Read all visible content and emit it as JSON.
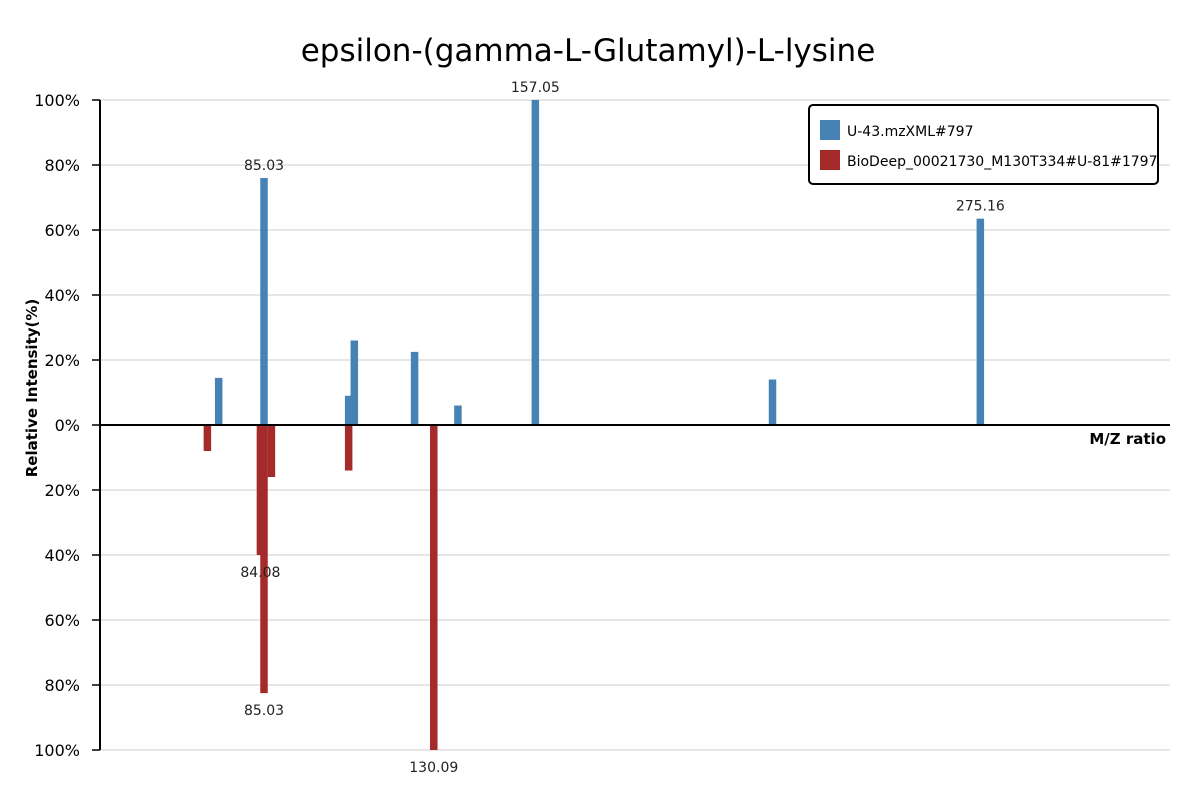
{
  "chart_data": {
    "type": "bar",
    "title": "epsilon-(gamma-L-Glutamyl)-L-lysine",
    "xlabel": "M/Z ratio",
    "ylabel": "Relative Intensity(%)",
    "xlim": [
      41.5,
      325.5
    ],
    "ylim": [
      -100,
      100
    ],
    "y_ticks": [
      {
        "value": 100,
        "label": "100%"
      },
      {
        "value": 80,
        "label": "80%"
      },
      {
        "value": 60,
        "label": "60%"
      },
      {
        "value": 40,
        "label": "40%"
      },
      {
        "value": 20,
        "label": "20%"
      },
      {
        "value": 0,
        "label": "0%"
      },
      {
        "value": -20,
        "label": "20%"
      },
      {
        "value": -40,
        "label": "40%"
      },
      {
        "value": -60,
        "label": "60%"
      },
      {
        "value": -80,
        "label": "80%"
      },
      {
        "value": -100,
        "label": "100%"
      }
    ],
    "grid": true,
    "legend_position": "top-right",
    "series": [
      {
        "name": "U-43.mzXML#797",
        "color": "#4682b4",
        "direction": "up",
        "peaks": [
          {
            "mz": 73.0,
            "intensity": 14.5,
            "label": ""
          },
          {
            "mz": 85.03,
            "intensity": 76,
            "label": "85.03"
          },
          {
            "mz": 107.5,
            "intensity": 9,
            "label": ""
          },
          {
            "mz": 109.0,
            "intensity": 26,
            "label": ""
          },
          {
            "mz": 125.0,
            "intensity": 22.5,
            "label": ""
          },
          {
            "mz": 136.5,
            "intensity": 6,
            "label": ""
          },
          {
            "mz": 157.05,
            "intensity": 100,
            "label": "157.05"
          },
          {
            "mz": 220.0,
            "intensity": 14,
            "label": ""
          },
          {
            "mz": 275.16,
            "intensity": 63.5,
            "label": "275.16"
          }
        ]
      },
      {
        "name": "BioDeep_00021730_M130T334#U-81#1797",
        "color": "#a52a2a",
        "direction": "down",
        "peaks": [
          {
            "mz": 70.0,
            "intensity": 8,
            "label": ""
          },
          {
            "mz": 84.08,
            "intensity": 40,
            "label": "84.08"
          },
          {
            "mz": 85.03,
            "intensity": 82.5,
            "label": "85.03"
          },
          {
            "mz": 87.0,
            "intensity": 16,
            "label": ""
          },
          {
            "mz": 107.5,
            "intensity": 14,
            "label": ""
          },
          {
            "mz": 130.09,
            "intensity": 100,
            "label": "130.09"
          }
        ]
      }
    ]
  }
}
